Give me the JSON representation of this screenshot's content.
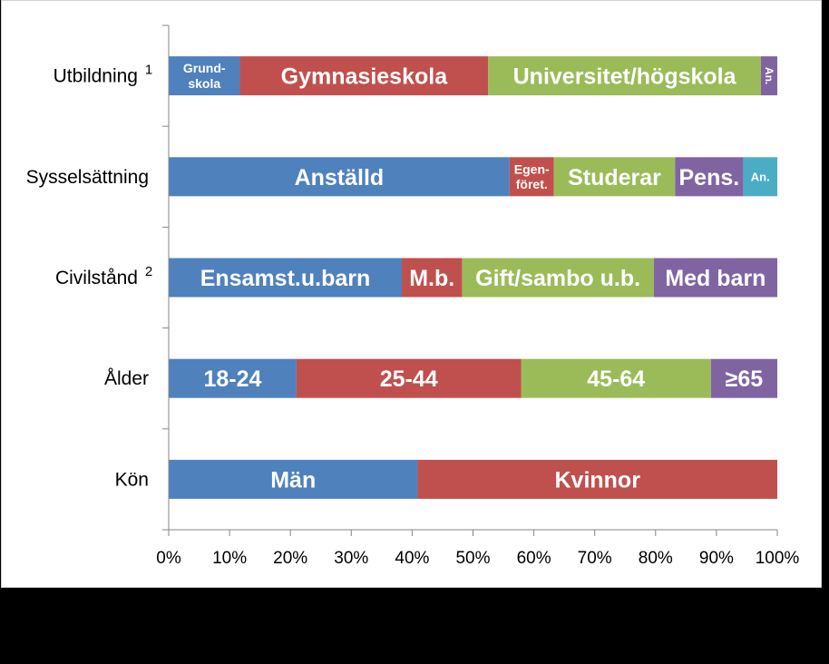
{
  "chart_data": {
    "type": "bar",
    "orientation": "horizontal",
    "stacked": true,
    "xlim": [
      0,
      100
    ],
    "x_ticks": [
      "0%",
      "10%",
      "20%",
      "30%",
      "40%",
      "50%",
      "60%",
      "70%",
      "80%",
      "90%",
      "100%"
    ],
    "grid": false,
    "legend": "none",
    "colors": {
      "blue": "#4f81bd",
      "red": "#c0504d",
      "green": "#9bbb59",
      "purple": "#8064a2",
      "teal": "#4bacc6"
    },
    "categories": [
      {
        "label": "Utbildning",
        "sup": "1",
        "segments": [
          {
            "label": "Grund-\nskola",
            "value": 11.7,
            "color": "blue",
            "size": 14
          },
          {
            "label": "Gymnasieskola",
            "value": 40.8,
            "color": "red",
            "size": 25
          },
          {
            "label": "Universitet/högskola",
            "value": 44.8,
            "color": "green",
            "size": 25
          },
          {
            "label": "An.",
            "value": 2.7,
            "color": "purple",
            "size": 12,
            "rotate": true
          }
        ]
      },
      {
        "label": "Sysselsättning",
        "sup": "",
        "segments": [
          {
            "label": "Anställd",
            "value": 56.0,
            "color": "blue",
            "size": 25
          },
          {
            "label": "Egen-\nföret.",
            "value": 7.3,
            "color": "red",
            "size": 14
          },
          {
            "label": "Studerar",
            "value": 19.9,
            "color": "green",
            "size": 25
          },
          {
            "label": "Pens.",
            "value": 11.2,
            "color": "purple",
            "size": 25
          },
          {
            "label": "An.",
            "value": 5.6,
            "color": "teal",
            "size": 13
          }
        ]
      },
      {
        "label": "Civilstånd",
        "sup": "2",
        "segments": [
          {
            "label": "Ensamst.u.barn",
            "value": 38.3,
            "color": "blue",
            "size": 25
          },
          {
            "label": "M.b.",
            "value": 9.9,
            "color": "red",
            "size": 25
          },
          {
            "label": "Gift/sambo u.b.",
            "value": 31.5,
            "color": "green",
            "size": 25
          },
          {
            "label": "Med barn",
            "value": 20.3,
            "color": "purple",
            "size": 25
          }
        ]
      },
      {
        "label": "Ålder",
        "sup": "",
        "segments": [
          {
            "label": "18-24",
            "value": 21.0,
            "color": "blue",
            "size": 25
          },
          {
            "label": "25-44",
            "value": 36.9,
            "color": "red",
            "size": 25
          },
          {
            "label": "45-64",
            "value": 31.2,
            "color": "green",
            "size": 25
          },
          {
            "label": "≥65",
            "value": 10.9,
            "color": "purple",
            "size": 25
          }
        ]
      },
      {
        "label": "Kön",
        "sup": "",
        "segments": [
          {
            "label": "Män",
            "value": 40.9,
            "color": "blue",
            "size": 25
          },
          {
            "label": "Kvinnor",
            "value": 59.1,
            "color": "red",
            "size": 25
          }
        ]
      }
    ]
  }
}
